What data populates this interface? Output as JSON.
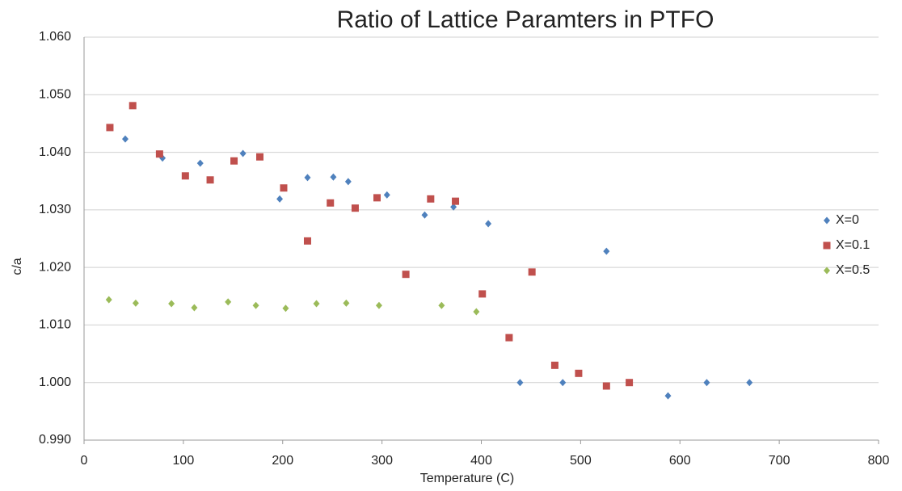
{
  "chart_data": {
    "type": "scatter",
    "title": "Ratio of Lattice Paramters in PTFO",
    "x_label": "Temperature (C)",
    "y_label": "c/a",
    "xlim": [
      0,
      800
    ],
    "xticks": [
      0,
      100,
      200,
      300,
      400,
      500,
      600,
      700,
      800
    ],
    "ylim": [
      0.99,
      1.06
    ],
    "yticks": [
      {
        "value": 0.99,
        "label": "0.990"
      },
      {
        "value": 1.0,
        "label": "1.000"
      },
      {
        "value": 1.01,
        "label": "1.010"
      },
      {
        "value": 1.02,
        "label": "1.020"
      },
      {
        "value": 1.03,
        "label": "1.030"
      },
      {
        "value": 1.04,
        "label": "1.040"
      },
      {
        "value": 1.05,
        "label": "1.050"
      },
      {
        "value": 1.06,
        "label": "1.060"
      }
    ],
    "grid": true,
    "legend": "right",
    "series": [
      {
        "name": "X=0",
        "color": "#4f81bd",
        "marker": "diamond",
        "x": [
          41.5,
          79,
          117,
          160,
          197,
          225,
          251,
          266,
          305,
          343,
          372,
          407,
          439,
          482,
          526,
          588,
          627,
          670
        ],
        "values": [
          1.0423,
          1.039,
          1.0381,
          1.0398,
          1.0319,
          1.0356,
          1.0357,
          1.0349,
          1.0326,
          1.0291,
          1.0305,
          1.0276,
          1.0,
          1.0,
          1.0228,
          0.9977,
          1.0,
          1.0
        ]
      },
      {
        "name": "X=0.1",
        "color": "#c0504d",
        "marker": "square",
        "x": [
          26,
          49,
          76,
          102,
          127,
          151,
          177,
          201,
          225,
          248,
          273,
          295,
          324,
          349,
          374,
          401,
          428,
          451,
          474,
          498,
          526,
          549
        ],
        "values": [
          1.0443,
          1.0481,
          1.0397,
          1.0359,
          1.0352,
          1.0385,
          1.0392,
          1.0338,
          1.0246,
          1.0312,
          1.0303,
          1.0321,
          1.0188,
          1.0319,
          1.0315,
          1.0154,
          1.0078,
          1.0192,
          1.003,
          1.0016,
          0.9994,
          1.0
        ]
      },
      {
        "name": "X=0.5",
        "color": "#9bbb59",
        "marker": "diamond",
        "x": [
          25,
          52,
          88,
          111,
          145,
          173,
          203,
          234,
          264,
          297,
          360,
          395
        ],
        "values": [
          1.0144,
          1.0138,
          1.0137,
          1.013,
          1.014,
          1.0134,
          1.0129,
          1.0137,
          1.0138,
          1.0134,
          1.0134,
          1.0123
        ]
      }
    ]
  }
}
